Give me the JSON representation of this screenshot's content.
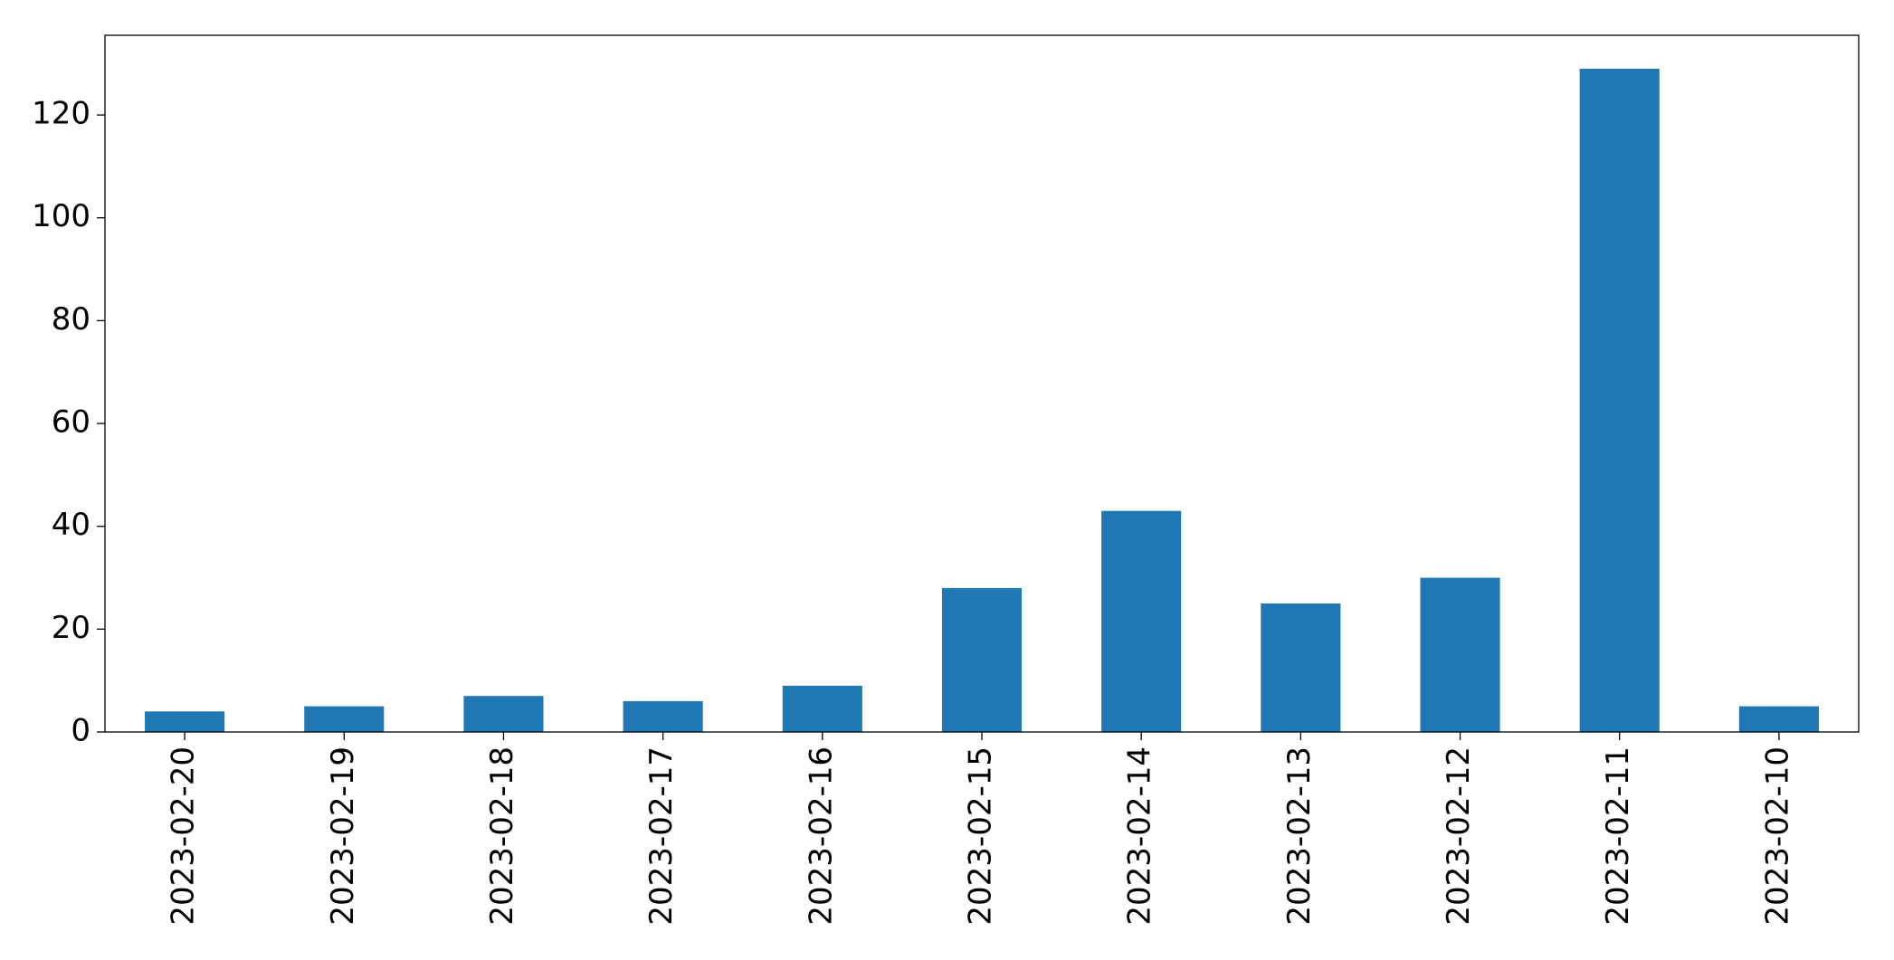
{
  "chart_data": {
    "type": "bar",
    "categories": [
      "2023-02-20",
      "2023-02-19",
      "2023-02-18",
      "2023-02-17",
      "2023-02-16",
      "2023-02-15",
      "2023-02-14",
      "2023-02-13",
      "2023-02-12",
      "2023-02-11",
      "2023-02-10"
    ],
    "values": [
      4,
      5,
      7,
      6,
      9,
      28,
      43,
      25,
      30,
      129,
      5
    ],
    "color": "#1f77b4",
    "ylim": [
      0,
      135.5
    ],
    "yticks": [
      0,
      20,
      40,
      60,
      80,
      100,
      120
    ],
    "grid": false
  }
}
